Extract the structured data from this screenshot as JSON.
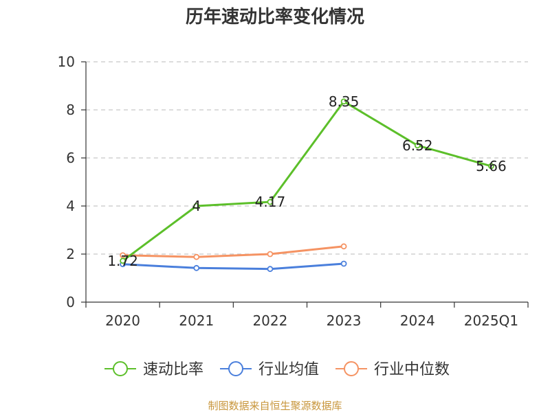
{
  "chart_data": {
    "type": "line",
    "title": "历年速动比率变化情况",
    "categories": [
      "2020",
      "2021",
      "2022",
      "2023",
      "2024",
      "2025Q1"
    ],
    "ylim": [
      0,
      10
    ],
    "yticks": [
      "0",
      "2",
      "4",
      "6",
      "8",
      "10"
    ],
    "grid": true,
    "legend_position": "bottom",
    "series": [
      {
        "name": "速动比率",
        "color": "#5cbf2a",
        "values": [
          1.72,
          4.0,
          4.17,
          8.35,
          6.52,
          5.66
        ],
        "labels": [
          "1.72",
          "4",
          "4.17",
          "8.35",
          "6.52",
          "5.66"
        ]
      },
      {
        "name": "行业均值",
        "color": "#4a7fdc",
        "values": [
          1.58,
          1.42,
          1.38,
          1.6,
          null,
          null
        ]
      },
      {
        "name": "行业中位数",
        "color": "#f59363",
        "values": [
          1.95,
          1.88,
          2.0,
          2.32,
          null,
          null
        ]
      }
    ]
  },
  "source_note": "制图数据来自恒生聚源数据库"
}
